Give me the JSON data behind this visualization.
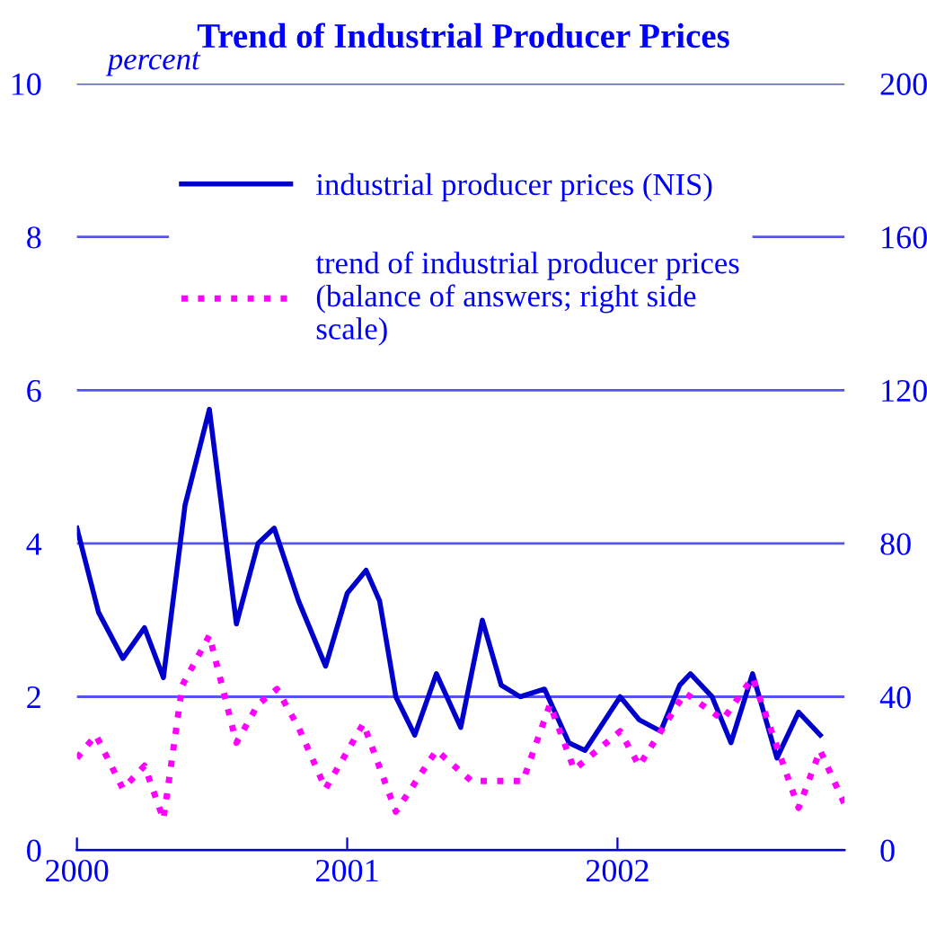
{
  "chart_data": {
    "type": "line",
    "title": "Trend of Industrial Producer Prices",
    "ylabel": "percent",
    "xlim": [
      2000,
      2002.84
    ],
    "xticks": [
      2000,
      2001,
      2002
    ],
    "ylim": [
      0,
      10
    ],
    "yticks": [
      0,
      2,
      4,
      6,
      8,
      10
    ],
    "y2lim": [
      0,
      200
    ],
    "y2ticks": [
      0,
      40,
      80,
      120,
      160,
      200
    ],
    "grid": "y",
    "legend": "top",
    "marker": "none",
    "series": [
      {
        "name": "industrial producer prices (NIS)",
        "color": "#0000cc",
        "line_style": "solid",
        "x": [
          2000.0,
          2000.08,
          2000.17,
          2000.25,
          2000.32,
          2000.4,
          2000.49,
          2000.59,
          2000.67,
          2000.73,
          2000.82,
          2000.92,
          2001.0,
          2001.07,
          2001.12,
          2001.18,
          2001.25,
          2001.33,
          2001.42,
          2001.5,
          2001.57,
          2001.64,
          2001.73,
          2001.82,
          2001.88,
          2002.01,
          2002.08,
          2002.16,
          2002.23,
          2002.27,
          2002.35,
          2002.42,
          2002.5,
          2002.59,
          2002.67,
          2002.75
        ],
        "values": [
          4.2,
          3.1,
          2.5,
          2.9,
          2.25,
          4.5,
          5.75,
          2.95,
          4.0,
          4.2,
          3.25,
          2.4,
          3.35,
          3.65,
          3.25,
          2.0,
          1.5,
          2.3,
          1.6,
          3.0,
          2.15,
          2.0,
          2.1,
          1.4,
          1.3,
          2.0,
          1.7,
          1.55,
          2.15,
          2.3,
          2.0,
          1.4,
          2.3,
          1.2,
          1.8,
          1.5
        ]
      },
      {
        "name": "trend of industrial producer prices\n(balance of answers; right side\nscale)",
        "color": "#ff00ff",
        "line_style": "dotted",
        "axis": "y2",
        "x": [
          2000.0,
          2000.07,
          2000.17,
          2000.25,
          2000.32,
          2000.39,
          2000.49,
          2000.59,
          2000.67,
          2000.74,
          2000.82,
          2000.92,
          2001.06,
          2001.18,
          2001.33,
          2001.46,
          2001.51,
          2001.65,
          2001.75,
          2001.84,
          2002.01,
          2002.08,
          2002.25,
          2002.39,
          2002.5,
          2002.67,
          2002.75,
          2002.84
        ],
        "values": [
          24,
          30,
          16,
          22,
          8,
          43,
          56,
          28,
          38,
          42,
          32,
          16,
          33,
          10,
          26,
          18,
          18,
          18,
          38,
          21,
          31,
          22,
          41,
          34,
          45,
          11,
          26,
          12
        ]
      }
    ]
  }
}
